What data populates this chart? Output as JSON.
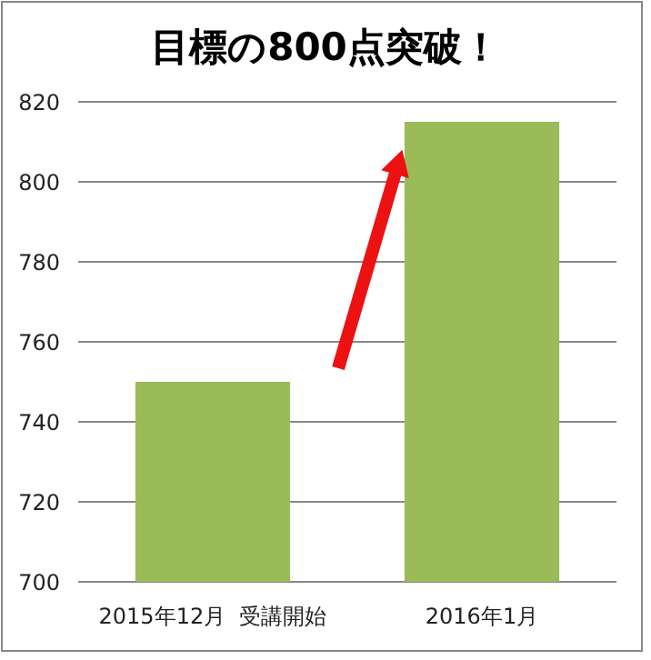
{
  "chart_data": {
    "type": "bar",
    "title": "目標の800点突破！",
    "categories": [
      "2015年12月  受講開始",
      "2016年1月"
    ],
    "values": [
      750,
      815
    ],
    "color": "#9bbb59",
    "ylim": [
      700,
      820
    ],
    "yticks": [
      700,
      720,
      740,
      760,
      780,
      800,
      820
    ],
    "grid": "y"
  }
}
